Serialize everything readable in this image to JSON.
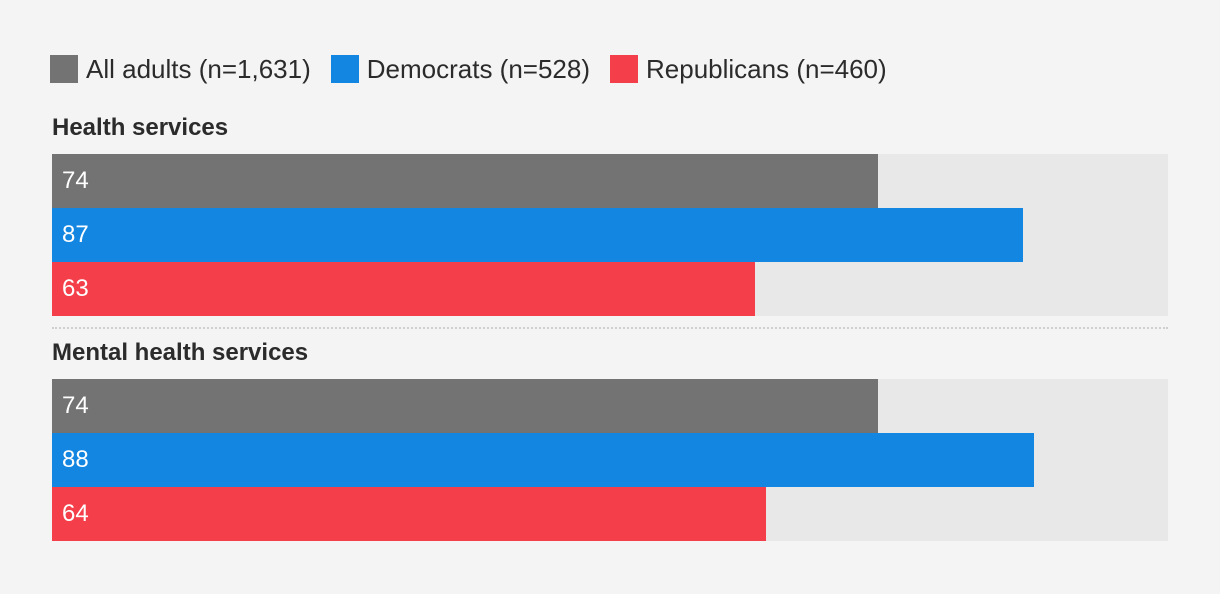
{
  "chart_data": {
    "type": "bar",
    "orientation": "horizontal",
    "xlim": [
      0,
      100
    ],
    "legend_position": "top-left",
    "series": [
      {
        "name": "All adults (n=1,631)",
        "color": "#737373"
      },
      {
        "name": "Democrats (n=528)",
        "color": "#1386e1"
      },
      {
        "name": "Republicans (n=460)",
        "color": "#f43f4b"
      }
    ],
    "groups": [
      {
        "title": "Health services",
        "values": [
          74,
          87,
          63
        ]
      },
      {
        "title": "Mental health services",
        "values": [
          74,
          88,
          64
        ]
      }
    ]
  }
}
